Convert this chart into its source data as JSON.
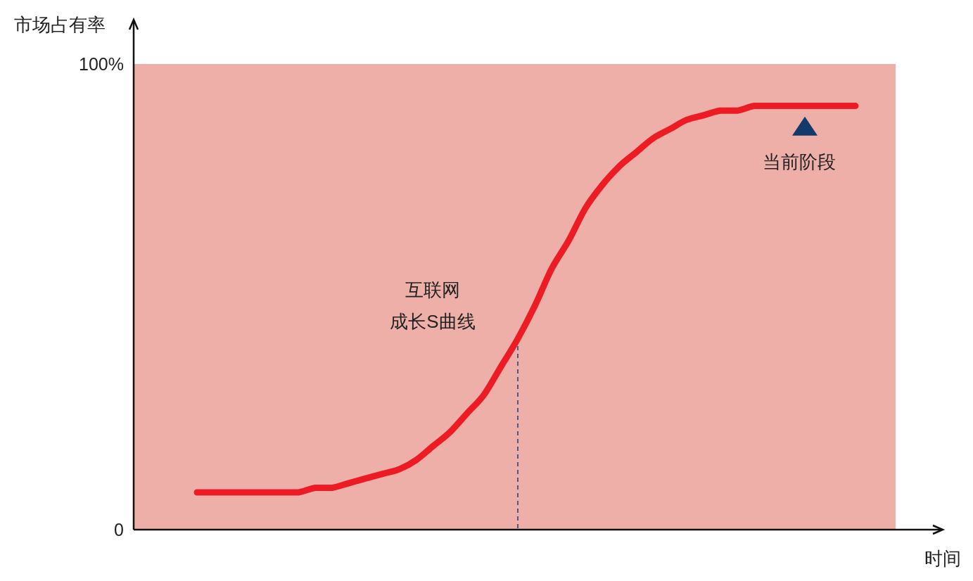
{
  "chart_data": {
    "type": "line",
    "xlabel": "时间",
    "ylabel": "市场占有率",
    "categories": [
      null,
      null,
      null,
      null,
      null,
      null,
      null,
      null,
      null,
      null,
      null,
      null,
      null,
      null,
      null,
      null,
      null,
      null,
      null,
      null,
      null,
      null,
      null,
      null,
      null,
      null,
      null,
      null,
      null,
      null,
      null,
      null,
      null,
      null,
      null,
      null,
      null,
      null,
      null,
      null
    ],
    "series": [
      {
        "color": "#ed1c24",
        "values": [
          8,
          8,
          8,
          8,
          8,
          8,
          8,
          9,
          9,
          10,
          11,
          12,
          13,
          15,
          18,
          21,
          25,
          29,
          35,
          41,
          48,
          56,
          62,
          69,
          74,
          78,
          81,
          84,
          86,
          88,
          89,
          90,
          90,
          91,
          91,
          91,
          91,
          91,
          91,
          91
        ]
      },
      {
        "type": "scatter",
        "marker": "triangle",
        "color": "#123a6b",
        "values": [
          null,
          null,
          null,
          null,
          null,
          null,
          null,
          null,
          null,
          null,
          null,
          null,
          null,
          null,
          null,
          null,
          null,
          null,
          null,
          null,
          null,
          null,
          null,
          null,
          null,
          null,
          null,
          null,
          null,
          null,
          null,
          null,
          null,
          null,
          null,
          null,
          86,
          null,
          null,
          null
        ]
      }
    ],
    "ylim": [
      0,
      100
    ],
    "yticks": [
      {
        "value": 0,
        "label": "0"
      },
      {
        "value": 100,
        "label": "100%"
      }
    ],
    "bands": [
      {
        "axis": "y",
        "from": 0,
        "to": 100,
        "color": "#edafa8"
      }
    ],
    "annotations": [
      "互联网",
      "成长S曲线",
      "当前阶段"
    ],
    "grid": false
  }
}
